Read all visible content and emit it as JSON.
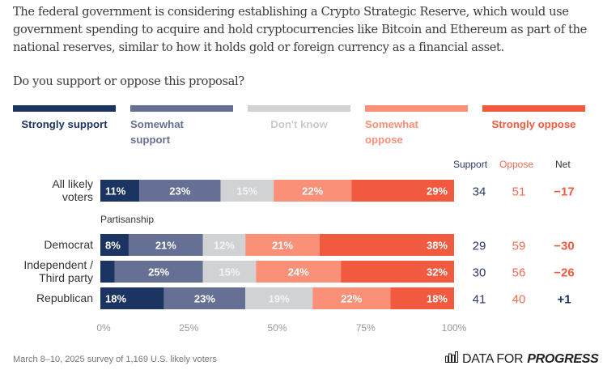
{
  "question": "The federal government is considering establishing a Crypto Strategic Reserve, which would use government spending to acquire and hold cryptocurrencies like Bitcoin and Ethereum as part of the national reserves, similar to how it holds gold or foreign currency as a financial asset.",
  "prompt": "Do you support or oppose this proposal?",
  "colors": {
    "strongly_support": "#1c3461",
    "somewhat_support": "#667094",
    "dont_know": "#d1d2d4",
    "somewhat_oppose": "#fa9078",
    "strongly_oppose": "#f15a3f",
    "support_text": "#2b3a67",
    "oppose_text": "#f26b53"
  },
  "legend": [
    {
      "label_line1": "Strongly support",
      "label_line2": "",
      "key": "strongly_support"
    },
    {
      "label_line1": "Somewhat",
      "label_line2": "support",
      "key": "somewhat_support"
    },
    {
      "label_line1": "Don't know",
      "label_line2": "",
      "key": "dont_know"
    },
    {
      "label_line1": "Somewhat",
      "label_line2": "oppose",
      "key": "somewhat_oppose"
    },
    {
      "label_line1": "Strongly oppose",
      "label_line2": "",
      "key": "strongly_oppose"
    }
  ],
  "columns": {
    "support": "Support",
    "oppose": "Oppose",
    "net": "Net"
  },
  "section_label": "Partisanship",
  "footer": {
    "note": "March 8–10, 2025 survey of 1,169 U.S. likely voters",
    "logo_light": "DATA FOR",
    "logo_bold": "PROGRESS",
    "logo_icon": "bar-chart-icon"
  },
  "chart_data": {
    "type": "bar",
    "orientation": "horizontal-stacked",
    "title": "Do you support or oppose this proposal?",
    "xlabel": "",
    "ylabel": "",
    "xlim": [
      0,
      100
    ],
    "x_ticks": [
      "0%",
      "25%",
      "50%",
      "75%",
      "100%"
    ],
    "legend_position": "top",
    "series_names": [
      "Strongly support",
      "Somewhat support",
      "Don't know",
      "Somewhat oppose",
      "Strongly oppose"
    ],
    "rows": [
      {
        "label_line1": "All likely",
        "label_line2": "voters",
        "values": [
          11,
          23,
          15,
          22,
          29
        ],
        "labels": [
          "11%",
          "23%",
          "15%",
          "22%",
          "29%"
        ],
        "support": "34",
        "oppose": "51",
        "net": "−17",
        "net_sign": "neg"
      },
      {
        "label_line1": "Democrat",
        "label_line2": "",
        "values": [
          8,
          21,
          12,
          21,
          38
        ],
        "labels": [
          "8%",
          "21%",
          "12%",
          "21%",
          "38%"
        ],
        "support": "29",
        "oppose": "59",
        "net": "−30",
        "net_sign": "neg"
      },
      {
        "label_line1": "Independent /",
        "label_line2": "Third party",
        "values": [
          4,
          25,
          15,
          24,
          32
        ],
        "labels": [
          "",
          "25%",
          "15%",
          "24%",
          "32%"
        ],
        "support": "30",
        "oppose": "56",
        "net": "−26",
        "net_sign": "neg"
      },
      {
        "label_line1": "Republican",
        "label_line2": "",
        "values": [
          18,
          23,
          19,
          22,
          18
        ],
        "labels": [
          "18%",
          "23%",
          "19%",
          "22%",
          "18%"
        ],
        "support": "41",
        "oppose": "40",
        "net": "+1",
        "net_sign": "pos"
      }
    ]
  }
}
